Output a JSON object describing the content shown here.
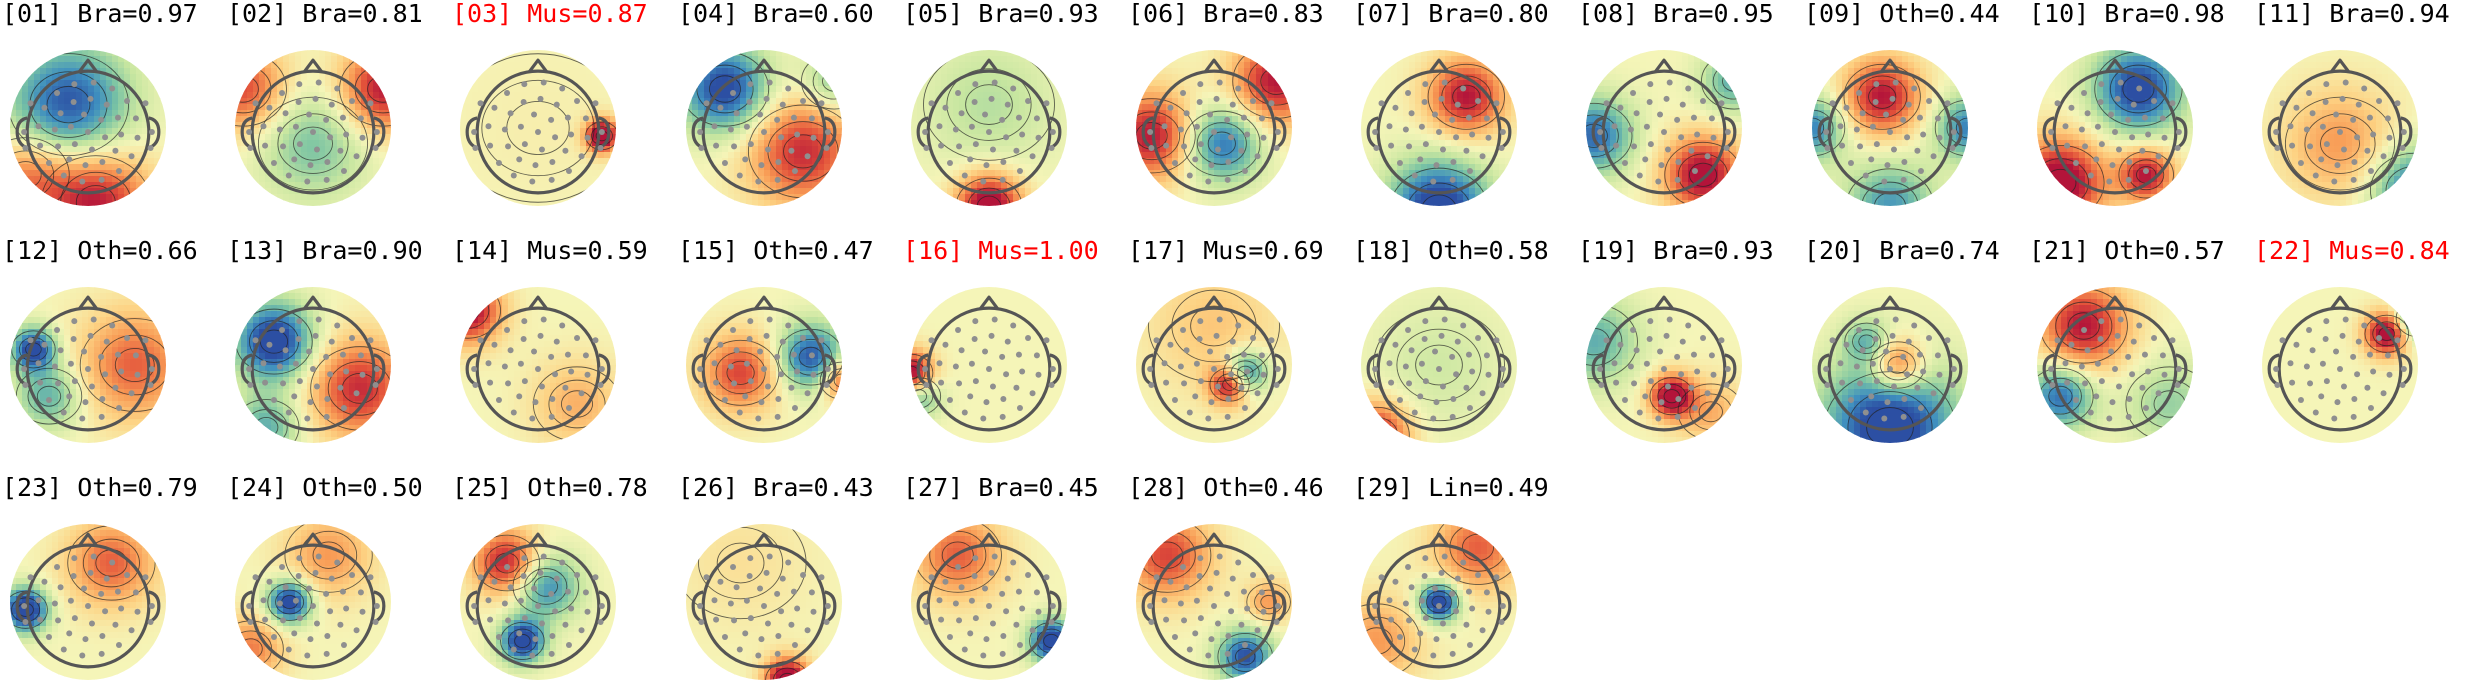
{
  "figure": {
    "colors": {
      "normal_label": "#000000",
      "flagged_label": "#ff0000",
      "head_outline": "#555555",
      "sensor": "#8f8f8f",
      "contour": "#222222",
      "colormap": [
        "#2c4fa3",
        "#3f8fbf",
        "#79c3a4",
        "#c7e6a0",
        "#f5f5b8",
        "#fdd283",
        "#f89b55",
        "#e2513a",
        "#b3143a"
      ]
    },
    "components": [
      {
        "label": "[01] Bra=0.97",
        "type": "Bra",
        "score": 0.97,
        "flagged": false
      },
      {
        "label": "[02] Bra=0.81",
        "type": "Bra",
        "score": 0.81,
        "flagged": false
      },
      {
        "label": "[03] Mus=0.87",
        "type": "Mus",
        "score": 0.87,
        "flagged": true
      },
      {
        "label": "[04] Bra=0.60",
        "type": "Bra",
        "score": 0.6,
        "flagged": false
      },
      {
        "label": "[05] Bra=0.93",
        "type": "Bra",
        "score": 0.93,
        "flagged": false
      },
      {
        "label": "[06] Bra=0.83",
        "type": "Bra",
        "score": 0.83,
        "flagged": false
      },
      {
        "label": "[07] Bra=0.80",
        "type": "Bra",
        "score": 0.8,
        "flagged": false
      },
      {
        "label": "[08] Bra=0.95",
        "type": "Bra",
        "score": 0.95,
        "flagged": false
      },
      {
        "label": "[09] Oth=0.44",
        "type": "Oth",
        "score": 0.44,
        "flagged": false
      },
      {
        "label": "[10] Bra=0.98",
        "type": "Bra",
        "score": 0.98,
        "flagged": false
      },
      {
        "label": "[11] Bra=0.94",
        "type": "Bra",
        "score": 0.94,
        "flagged": false
      },
      {
        "label": "[12] Oth=0.66",
        "type": "Oth",
        "score": 0.66,
        "flagged": false
      },
      {
        "label": "[13] Bra=0.90",
        "type": "Bra",
        "score": 0.9,
        "flagged": false
      },
      {
        "label": "[14] Mus=0.59",
        "type": "Mus",
        "score": 0.59,
        "flagged": false
      },
      {
        "label": "[15] Oth=0.47",
        "type": "Oth",
        "score": 0.47,
        "flagged": false
      },
      {
        "label": "[16] Mus=1.00",
        "type": "Mus",
        "score": 1.0,
        "flagged": true
      },
      {
        "label": "[17] Mus=0.69",
        "type": "Mus",
        "score": 0.69,
        "flagged": false
      },
      {
        "label": "[18] Oth=0.58",
        "type": "Oth",
        "score": 0.58,
        "flagged": false
      },
      {
        "label": "[19] Bra=0.93",
        "type": "Bra",
        "score": 0.93,
        "flagged": false
      },
      {
        "label": "[20] Bra=0.74",
        "type": "Bra",
        "score": 0.74,
        "flagged": false
      },
      {
        "label": "[21] Oth=0.57",
        "type": "Oth",
        "score": 0.57,
        "flagged": false
      },
      {
        "label": "[22] Mus=0.84",
        "type": "Mus",
        "score": 0.84,
        "flagged": true
      },
      {
        "label": "[23] Oth=0.79",
        "type": "Oth",
        "score": 0.79,
        "flagged": false
      },
      {
        "label": "[24] Oth=0.50",
        "type": "Oth",
        "score": 0.5,
        "flagged": false
      },
      {
        "label": "[25] Oth=0.78",
        "type": "Oth",
        "score": 0.78,
        "flagged": false
      },
      {
        "label": "[26] Bra=0.43",
        "type": "Bra",
        "score": 0.43,
        "flagged": false
      },
      {
        "label": "[27] Bra=0.45",
        "type": "Bra",
        "score": 0.45,
        "flagged": false
      },
      {
        "label": "[28] Oth=0.46",
        "type": "Oth",
        "score": 0.46,
        "flagged": false
      },
      {
        "label": "[29] Lin=0.49",
        "type": "Lin",
        "score": 0.49,
        "flagged": false
      }
    ]
  }
}
